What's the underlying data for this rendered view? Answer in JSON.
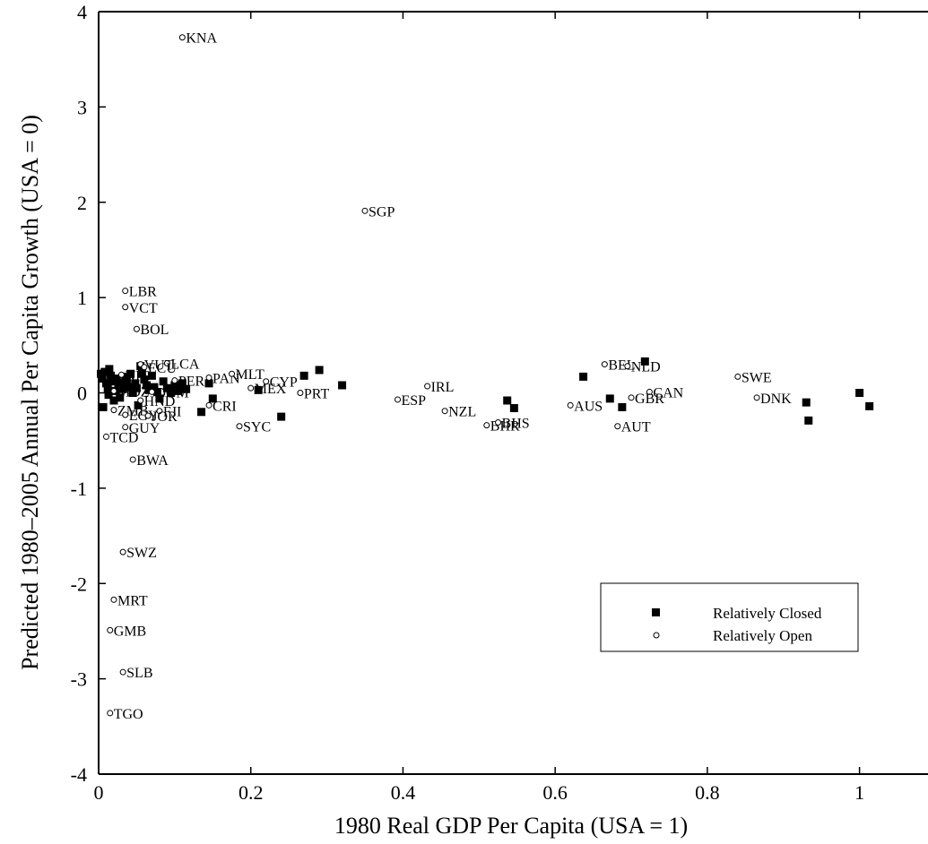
{
  "chart_data": {
    "type": "scatter",
    "xlabel": "1980 Real GDP Per Capita (USA = 1)",
    "ylabel": "Predicted 1980–2005 Annual Per Capita Growth (USA = 0)",
    "xlim": [
      0,
      1.09
    ],
    "ylim": [
      -4,
      4
    ],
    "x_ticks": [
      {
        "value": 0,
        "label": "0"
      },
      {
        "value": 0.2,
        "label": "0.2"
      },
      {
        "value": 0.4,
        "label": "0.4"
      },
      {
        "value": 0.6,
        "label": "0.6"
      },
      {
        "value": 0.8,
        "label": "0.8"
      },
      {
        "value": 1,
        "label": "1"
      }
    ],
    "y_ticks": [
      {
        "value": -4,
        "label": "-4"
      },
      {
        "value": -3,
        "label": "-3"
      },
      {
        "value": -2,
        "label": "-2"
      },
      {
        "value": -1,
        "label": "-1"
      },
      {
        "value": 0,
        "label": "0"
      },
      {
        "value": 1,
        "label": "1"
      },
      {
        "value": 2,
        "label": "2"
      },
      {
        "value": 3,
        "label": "3"
      },
      {
        "value": 4,
        "label": "4"
      }
    ],
    "grid": false,
    "legend_position": "bottom-right",
    "series": [
      {
        "name": "Relatively Closed",
        "marker": "filled-square",
        "color": "#000000",
        "points": [
          {
            "x": 0.003,
            "y": 0.2
          },
          {
            "x": 0.005,
            "y": 0.15
          },
          {
            "x": 0.006,
            "y": -0.15
          },
          {
            "x": 0.008,
            "y": 0.22
          },
          {
            "x": 0.01,
            "y": 0.1
          },
          {
            "x": 0.012,
            "y": 0.05
          },
          {
            "x": 0.013,
            "y": -0.02
          },
          {
            "x": 0.014,
            "y": 0.25
          },
          {
            "x": 0.016,
            "y": 0.18
          },
          {
            "x": 0.018,
            "y": 0.12
          },
          {
            "x": 0.02,
            "y": -0.08
          },
          {
            "x": 0.022,
            "y": 0.02
          },
          {
            "x": 0.024,
            "y": 0.15
          },
          {
            "x": 0.026,
            "y": 0.08
          },
          {
            "x": 0.028,
            "y": -0.05
          },
          {
            "x": 0.03,
            "y": 0.1
          },
          {
            "x": 0.032,
            "y": 0.04
          },
          {
            "x": 0.035,
            "y": 0.17
          },
          {
            "x": 0.037,
            "y": 0.12
          },
          {
            "x": 0.04,
            "y": 0.06
          },
          {
            "x": 0.042,
            "y": 0.2
          },
          {
            "x": 0.045,
            "y": 0.0
          },
          {
            "x": 0.048,
            "y": 0.1
          },
          {
            "x": 0.05,
            "y": 0.05
          },
          {
            "x": 0.052,
            "y": -0.13
          },
          {
            "x": 0.055,
            "y": 0.28
          },
          {
            "x": 0.057,
            "y": 0.2
          },
          {
            "x": 0.06,
            "y": 0.14
          },
          {
            "x": 0.063,
            "y": 0.08
          },
          {
            "x": 0.066,
            "y": 0.03
          },
          {
            "x": 0.07,
            "y": 0.18
          },
          {
            "x": 0.073,
            "y": 0.06
          },
          {
            "x": 0.077,
            "y": 0.01
          },
          {
            "x": 0.08,
            "y": -0.06
          },
          {
            "x": 0.085,
            "y": 0.12
          },
          {
            "x": 0.09,
            "y": 0.05
          },
          {
            "x": 0.095,
            "y": 0.0
          },
          {
            "x": 0.1,
            "y": 0.08
          },
          {
            "x": 0.105,
            "y": 0.02
          },
          {
            "x": 0.11,
            "y": 0.1
          },
          {
            "x": 0.115,
            "y": 0.04
          },
          {
            "x": 0.135,
            "y": -0.2
          },
          {
            "x": 0.145,
            "y": 0.1
          },
          {
            "x": 0.15,
            "y": -0.06
          },
          {
            "x": 0.21,
            "y": 0.03
          },
          {
            "x": 0.24,
            "y": -0.25
          },
          {
            "x": 0.27,
            "y": 0.18
          },
          {
            "x": 0.29,
            "y": 0.24
          },
          {
            "x": 0.32,
            "y": 0.08
          },
          {
            "x": 0.537,
            "y": -0.08
          },
          {
            "x": 0.546,
            "y": -0.16
          },
          {
            "x": 0.637,
            "y": 0.17
          },
          {
            "x": 0.672,
            "y": -0.06
          },
          {
            "x": 0.688,
            "y": -0.15
          },
          {
            "x": 0.718,
            "y": 0.33
          },
          {
            "x": 0.93,
            "y": -0.1
          },
          {
            "x": 0.933,
            "y": -0.29
          },
          {
            "x": 1.0,
            "y": 0.0
          },
          {
            "x": 1.013,
            "y": -0.14
          }
        ]
      },
      {
        "name": "Relatively Open",
        "marker": "open-circle",
        "color": "#000000",
        "points": [
          {
            "x": 0.11,
            "y": 3.73,
            "label": "KNA"
          },
          {
            "x": 0.35,
            "y": 1.91,
            "label": "SGP"
          },
          {
            "x": 0.035,
            "y": 1.07,
            "label": "LBR"
          },
          {
            "x": 0.035,
            "y": 0.9,
            "label": "VCT"
          },
          {
            "x": 0.05,
            "y": 0.67,
            "label": "BOL"
          },
          {
            "x": 0.055,
            "y": 0.3,
            "label": "VUT"
          },
          {
            "x": 0.09,
            "y": 0.31,
            "label": "LCA"
          },
          {
            "x": 0.06,
            "y": 0.27,
            "label": "ECU"
          },
          {
            "x": 0.03,
            "y": 0.19,
            "label": "NIG"
          },
          {
            "x": 0.1,
            "y": 0.13,
            "label": "PER"
          },
          {
            "x": 0.145,
            "y": 0.16,
            "label": "PAN"
          },
          {
            "x": 0.175,
            "y": 0.2,
            "label": "MLT"
          },
          {
            "x": 0.22,
            "y": 0.12,
            "label": "CYP"
          },
          {
            "x": 0.2,
            "y": 0.05,
            "label": "MEX"
          },
          {
            "x": 0.265,
            "y": 0.0,
            "label": "PRT"
          },
          {
            "x": 0.02,
            "y": 0.02,
            "label": "MOZ"
          },
          {
            "x": 0.07,
            "y": 0.01,
            "label": "DOM"
          },
          {
            "x": 0.055,
            "y": -0.08,
            "label": "HND"
          },
          {
            "x": 0.145,
            "y": -0.13,
            "label": "CRI"
          },
          {
            "x": 0.02,
            "y": -0.18,
            "label": "ZMB"
          },
          {
            "x": 0.08,
            "y": -0.19,
            "label": "FJI"
          },
          {
            "x": 0.035,
            "y": -0.23,
            "label": "EGY"
          },
          {
            "x": 0.065,
            "y": -0.24,
            "label": "JOR"
          },
          {
            "x": 0.035,
            "y": -0.36,
            "label": "GUY"
          },
          {
            "x": 0.185,
            "y": -0.35,
            "label": "SYC"
          },
          {
            "x": 0.01,
            "y": -0.46,
            "label": "TCD"
          },
          {
            "x": 0.045,
            "y": -0.7,
            "label": "BWA"
          },
          {
            "x": 0.032,
            "y": -1.67,
            "label": "SWZ"
          },
          {
            "x": 0.02,
            "y": -2.17,
            "label": "MRT"
          },
          {
            "x": 0.015,
            "y": -2.49,
            "label": "GMB"
          },
          {
            "x": 0.032,
            "y": -2.93,
            "label": "SLB"
          },
          {
            "x": 0.015,
            "y": -3.36,
            "label": "TGO"
          },
          {
            "x": 0.432,
            "y": 0.07,
            "label": "IRL"
          },
          {
            "x": 0.393,
            "y": -0.07,
            "label": "ESP"
          },
          {
            "x": 0.455,
            "y": -0.19,
            "label": "NZL"
          },
          {
            "x": 0.51,
            "y": -0.34,
            "label": "BHR"
          },
          {
            "x": 0.525,
            "y": -0.31,
            "label": "BHS"
          },
          {
            "x": 0.62,
            "y": -0.13,
            "label": "AUS"
          },
          {
            "x": 0.665,
            "y": 0.3,
            "label": "BEL"
          },
          {
            "x": 0.695,
            "y": 0.28,
            "label": "NLD"
          },
          {
            "x": 0.724,
            "y": 0.01,
            "label": "CAN"
          },
          {
            "x": 0.7,
            "y": -0.05,
            "label": "GBR"
          },
          {
            "x": 0.682,
            "y": -0.35,
            "label": "AUT"
          },
          {
            "x": 0.84,
            "y": 0.17,
            "label": "SWE"
          },
          {
            "x": 0.865,
            "y": -0.05,
            "label": "DNK"
          }
        ]
      }
    ]
  }
}
